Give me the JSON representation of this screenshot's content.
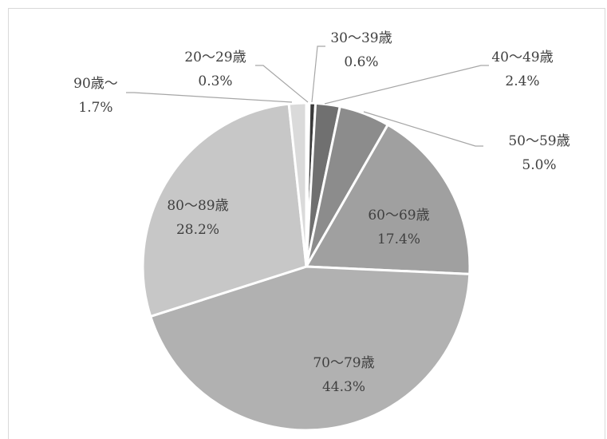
{
  "chart_data": {
    "type": "pie",
    "title": "",
    "start_angle_deg": 0,
    "direction": "clockwise",
    "slices": [
      {
        "category": "20～29歳",
        "value": 0.3,
        "label": "0.3%",
        "color": "#ffffff"
      },
      {
        "category": "30～39歳",
        "value": 0.6,
        "label": "0.6%",
        "color": "#3a3a3a"
      },
      {
        "category": "40～49歳",
        "value": 2.4,
        "label": "2.4%",
        "color": "#707070"
      },
      {
        "category": "50～59歳",
        "value": 5.0,
        "label": "5.0%",
        "color": "#8c8c8c"
      },
      {
        "category": "60～69歳",
        "value": 17.4,
        "label": "17.4%",
        "color": "#a0a0a0"
      },
      {
        "category": "70～79歳",
        "value": 44.3,
        "label": "44.3%",
        "color": "#b1b1b1"
      },
      {
        "category": "80～89歳",
        "value": 28.2,
        "label": "28.2%",
        "color": "#c7c7c7"
      },
      {
        "category": "90歳～",
        "value": 1.7,
        "label": "1.7%",
        "color": "#dadada"
      }
    ]
  }
}
